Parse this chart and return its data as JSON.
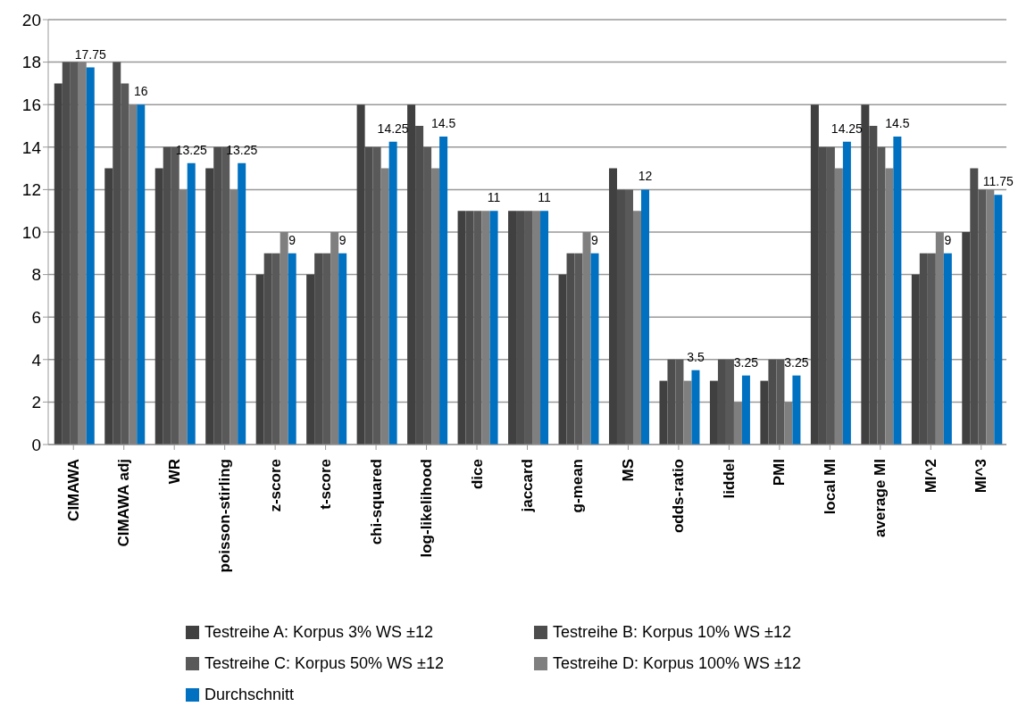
{
  "chart_data": {
    "type": "bar",
    "categories": [
      "CIMAWA",
      "CIMAWA adj",
      "WR",
      "poisson-stirling",
      "z-score",
      "t-score",
      "chi-squared",
      "log-likelihood",
      "dice",
      "jaccard",
      "g-mean",
      "MS",
      "odds-ratio",
      "liddel",
      "PMI",
      "local MI",
      "average MI",
      "MI^2",
      "MI^3"
    ],
    "series": [
      {
        "name": "Testreihe A: Korpus 3% WS ±12",
        "color": "#404040",
        "values": [
          17,
          13,
          13,
          13,
          8,
          8,
          16,
          16,
          11,
          11,
          8,
          13,
          3,
          3,
          3,
          16,
          16,
          8,
          10
        ]
      },
      {
        "name": "Testreihe B: Korpus 10% WS ±12",
        "color": "#4d4d4d",
        "values": [
          18,
          18,
          14,
          14,
          9,
          9,
          14,
          15,
          11,
          11,
          9,
          12,
          4,
          4,
          4,
          14,
          15,
          9,
          13
        ]
      },
      {
        "name": "Testreihe C: Korpus 50% WS ±12",
        "color": "#595959",
        "values": [
          18,
          17,
          14,
          14,
          9,
          9,
          14,
          14,
          11,
          11,
          9,
          12,
          4,
          4,
          4,
          14,
          14,
          9,
          12
        ]
      },
      {
        "name": "Testreihe D: Korpus 100% WS ±12",
        "color": "#7f7f7f",
        "values": [
          18,
          16,
          12,
          12,
          10,
          10,
          13,
          13,
          11,
          11,
          10,
          11,
          3,
          2,
          2,
          13,
          13,
          10,
          12
        ]
      },
      {
        "name": "Durchschnitt",
        "color": "#0070c0",
        "values": [
          17.75,
          16,
          13.25,
          13.25,
          9,
          9,
          14.25,
          14.5,
          11,
          11,
          9,
          12,
          3.5,
          3.25,
          3.25,
          14.25,
          14.5,
          9,
          11.75
        ],
        "value_labels": [
          "17.75",
          "16",
          "13.25",
          "13.25",
          "9",
          "9",
          "14.25",
          "14.5",
          "11",
          "11",
          "9",
          "12",
          "3.5",
          "3.25",
          "3.25",
          "14.25",
          "14.5",
          "9",
          "11.75"
        ]
      }
    ],
    "ylim": [
      0,
      20
    ],
    "yticks": [
      0,
      2,
      4,
      6,
      8,
      10,
      12,
      14,
      16,
      18,
      20
    ],
    "grid": "y",
    "legend": "bottom"
  }
}
